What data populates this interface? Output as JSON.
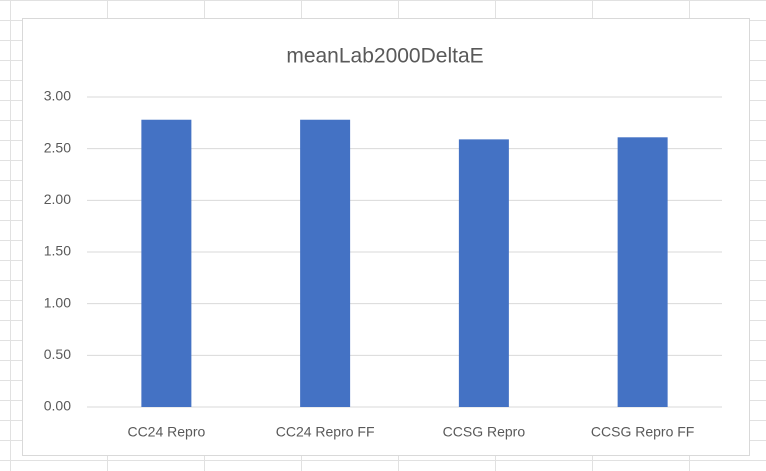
{
  "chart_data": {
    "type": "bar",
    "title": "meanLab2000DeltaE",
    "categories": [
      "CC24 Repro",
      "CC24 Repro FF",
      "CCSG Repro",
      "CCSG Repro FF"
    ],
    "values": [
      2.78,
      2.78,
      2.59,
      2.61
    ],
    "color": "#4472c4",
    "ylim": [
      0,
      3
    ],
    "yticks": [
      {
        "value": 0,
        "label": "0.00"
      },
      {
        "value": 0.5,
        "label": "0.50"
      },
      {
        "value": 1,
        "label": "1.00"
      },
      {
        "value": 1.5,
        "label": "1.50"
      },
      {
        "value": 2,
        "label": "2.00"
      },
      {
        "value": 2.5,
        "label": "2.50"
      },
      {
        "value": 3,
        "label": "3.00"
      }
    ],
    "grid": true
  }
}
